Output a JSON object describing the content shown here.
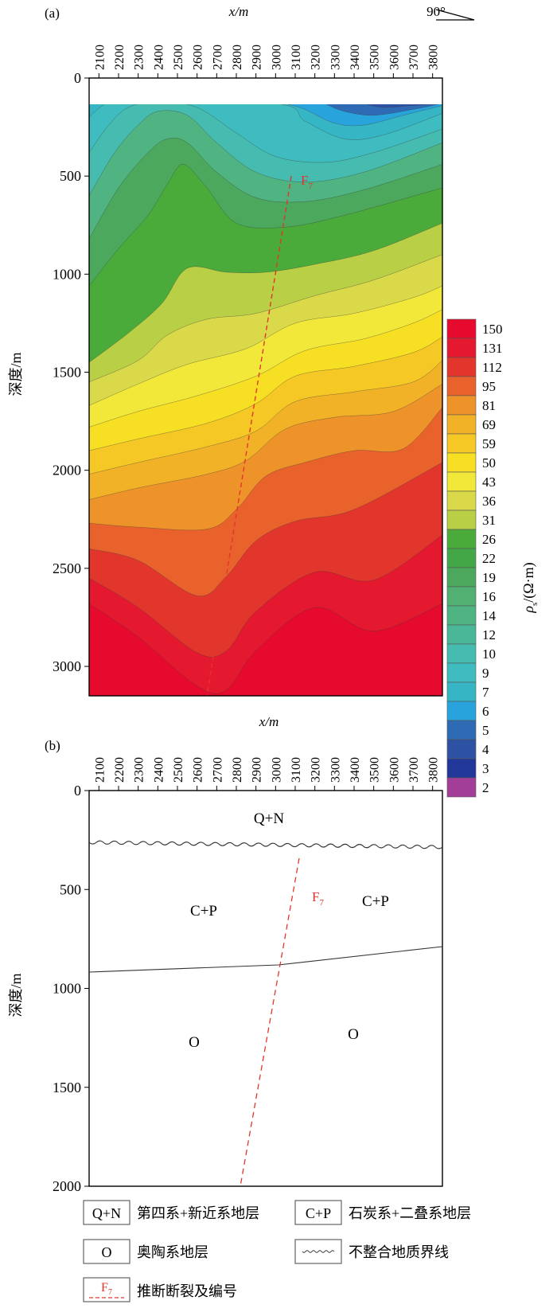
{
  "panel_a": {
    "label": "(a)",
    "x_axis_title": "x/m",
    "x_ticks": [
      "2100",
      "2200",
      "2300",
      "2400",
      "2500",
      "2600",
      "2700",
      "2800",
      "2900",
      "3000",
      "3100",
      "3200",
      "3300",
      "3400",
      "3500",
      "3600",
      "3700",
      "3800"
    ],
    "depth_label": "深度/m",
    "depth_ticks": [
      "0",
      "500",
      "1000",
      "1500",
      "2000",
      "2500",
      "3000"
    ],
    "depth_range": [
      0,
      3150
    ],
    "x_range": [
      2050,
      3850
    ],
    "orientation": "90°",
    "fault_label": "F",
    "fault_subscript": "7"
  },
  "colorbar": {
    "title": "ρs/(Ω·m)",
    "title_symbol": "ρ",
    "title_subscript": "s",
    "title_unit": "/(Ω·m)",
    "levels": [
      "150",
      "131",
      "112",
      "95",
      "81",
      "69",
      "59",
      "50",
      "43",
      "36",
      "31",
      "26",
      "22",
      "19",
      "16",
      "14",
      "12",
      "10",
      "9",
      "7",
      "6",
      "5",
      "4",
      "3",
      "2"
    ],
    "colors": [
      "#e60a2e",
      "#e4182e",
      "#e2362c",
      "#e9622c",
      "#ee932a",
      "#f2b227",
      "#f5c826",
      "#f7df24",
      "#f2e83a",
      "#d9d94a",
      "#b8cf46",
      "#4aab3a",
      "#43a748",
      "#4ba85c",
      "#51b072",
      "#4fb481",
      "#4ab898",
      "#46bbaf",
      "#3fbcbf",
      "#36b5c4",
      "#29a3dc",
      "#2f6ab4",
      "#2d52a4",
      "#22379a",
      "#a23d98"
    ]
  },
  "panel_b": {
    "label": "(b)",
    "x_axis_title": "x/m",
    "depth_label": "深度/m",
    "depth_ticks": [
      "0",
      "500",
      "1000",
      "1500",
      "2000"
    ],
    "depth_range": [
      0,
      2000
    ],
    "x_range": [
      2050,
      3850
    ],
    "unit_qn": "Q+N",
    "unit_cp_left": "C+P",
    "unit_cp_right": "C+P",
    "unit_o_left": "O",
    "unit_o_right": "O",
    "fault_label": "F",
    "fault_subscript": "7"
  },
  "legend": {
    "items": [
      {
        "symbol": "Q+N",
        "text": "第四系+新近系地层"
      },
      {
        "symbol": "C+P",
        "text": "石炭系+二叠系地层"
      },
      {
        "symbol": "O",
        "text": "奥陶系地层"
      },
      {
        "symbol": "wavy-line-icon",
        "text": "不整合地质界线"
      },
      {
        "symbol": "F7",
        "symbol_main": "F",
        "symbol_sub": "7",
        "text": "推断断裂及编号"
      }
    ]
  }
}
